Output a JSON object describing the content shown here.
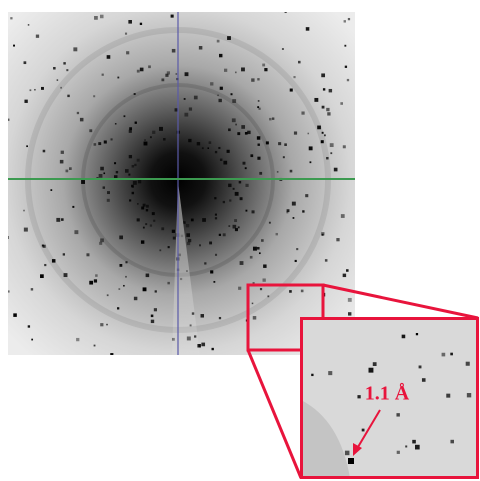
{
  "annotation": "1.1 Å"
}
